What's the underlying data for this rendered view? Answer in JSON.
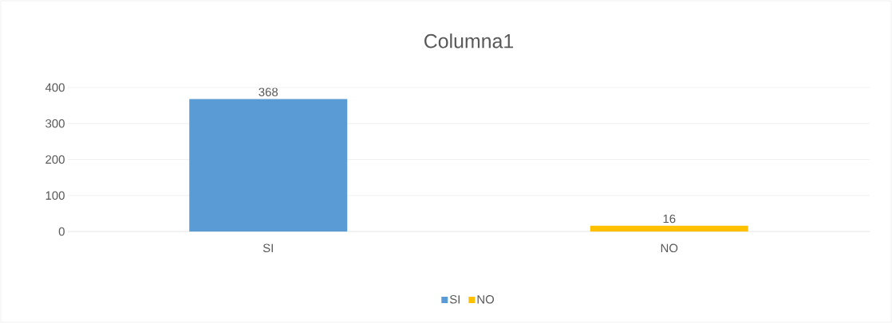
{
  "chart_data": {
    "type": "bar",
    "title": "Columna1",
    "categories": [
      "SI",
      "NO"
    ],
    "series": [
      {
        "name": "SI",
        "color": "#5b9bd5",
        "values": [
          368,
          null
        ]
      },
      {
        "name": "NO",
        "color": "#ffc000",
        "values": [
          null,
          16
        ]
      }
    ],
    "ylim": [
      0,
      400
    ],
    "yticks": [
      0,
      100,
      200,
      300,
      400
    ],
    "grid": "y",
    "legend": "bottom",
    "data_labels": true
  }
}
